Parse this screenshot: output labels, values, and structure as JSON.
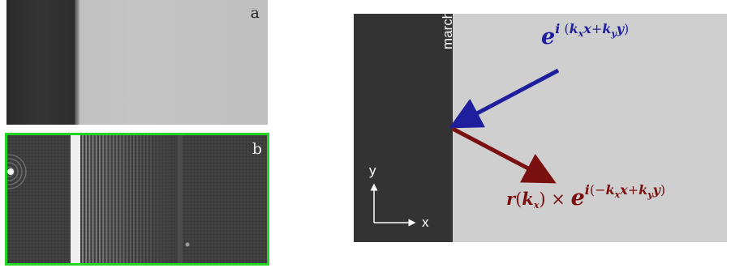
{
  "panels": {
    "a": {
      "label": "a"
    },
    "b": {
      "label": "b",
      "border_color": "#22d622"
    }
  },
  "diagram": {
    "wall_label": "marche",
    "axis_x": "x",
    "axis_y": "y",
    "incident_wave": {
      "base": "e",
      "exponent": {
        "i": "i",
        "lp": "(",
        "k1": "k",
        "s1": "x",
        "v1": "x",
        "plus": "+",
        "k2": "k",
        "s2": "y",
        "v2": "y",
        "rp": ")"
      },
      "color": "#1f1f9e"
    },
    "reflected_wave": {
      "r": "r",
      "lp": "(",
      "k": "k",
      "ks": "x",
      "rp": ")",
      "times": "×",
      "base": "e",
      "exponent": {
        "i": "i",
        "lp": "(",
        "minus": "−",
        "k1": "k",
        "s1": "x",
        "v1": "x",
        "plus": "+",
        "k2": "k",
        "s2": "y",
        "v2": "y",
        "rp": ")"
      },
      "color": "#7a1010"
    }
  }
}
